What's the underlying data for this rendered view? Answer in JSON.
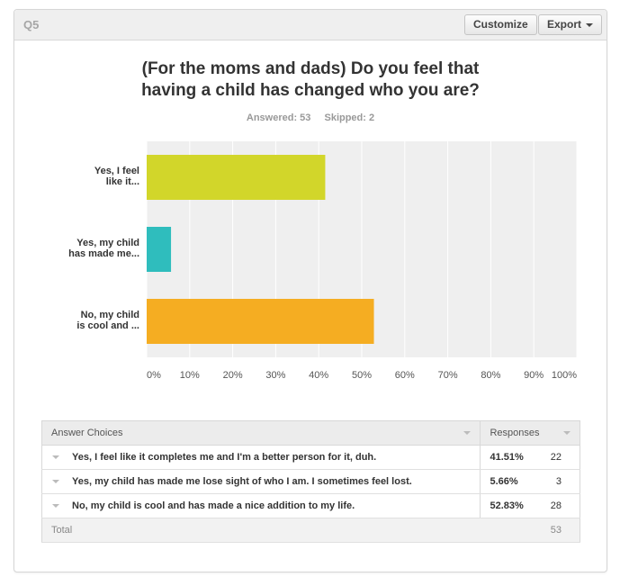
{
  "header": {
    "question_number": "Q5",
    "customize_label": "Customize",
    "export_label": "Export"
  },
  "question": {
    "title_line1": "(For the moms and dads) Do you feel that",
    "title_line2": "having a child has changed who you are?",
    "answered": "Answered: 53",
    "skipped": "Skipped: 2"
  },
  "chart_data": {
    "type": "bar",
    "orientation": "horizontal",
    "categories": [
      [
        "Yes, I feel",
        "like it..."
      ],
      [
        "Yes, my child",
        "has made me..."
      ],
      [
        "No, my child",
        "is cool and ..."
      ]
    ],
    "values": [
      41.51,
      5.66,
      52.83
    ],
    "colors": [
      "#d2d62a",
      "#2fbdbd",
      "#f5ad22"
    ],
    "xlim": [
      0,
      100
    ],
    "xticks": [
      "0%",
      "10%",
      "20%",
      "30%",
      "40%",
      "50%",
      "60%",
      "70%",
      "80%",
      "90%",
      "100%"
    ],
    "grid": true
  },
  "table": {
    "col_choices": "Answer Choices",
    "col_responses": "Responses",
    "rows": [
      {
        "choice": "Yes, I feel like it completes me and I'm a better person for it, duh.",
        "percent": "41.51%",
        "count": "22"
      },
      {
        "choice": "Yes, my child has made me lose sight of who I am. I sometimes feel lost.",
        "percent": "5.66%",
        "count": "3"
      },
      {
        "choice": "No, my child is cool and has made a nice addition to my life.",
        "percent": "52.83%",
        "count": "28"
      }
    ],
    "total_label": "Total",
    "total_value": "53"
  }
}
